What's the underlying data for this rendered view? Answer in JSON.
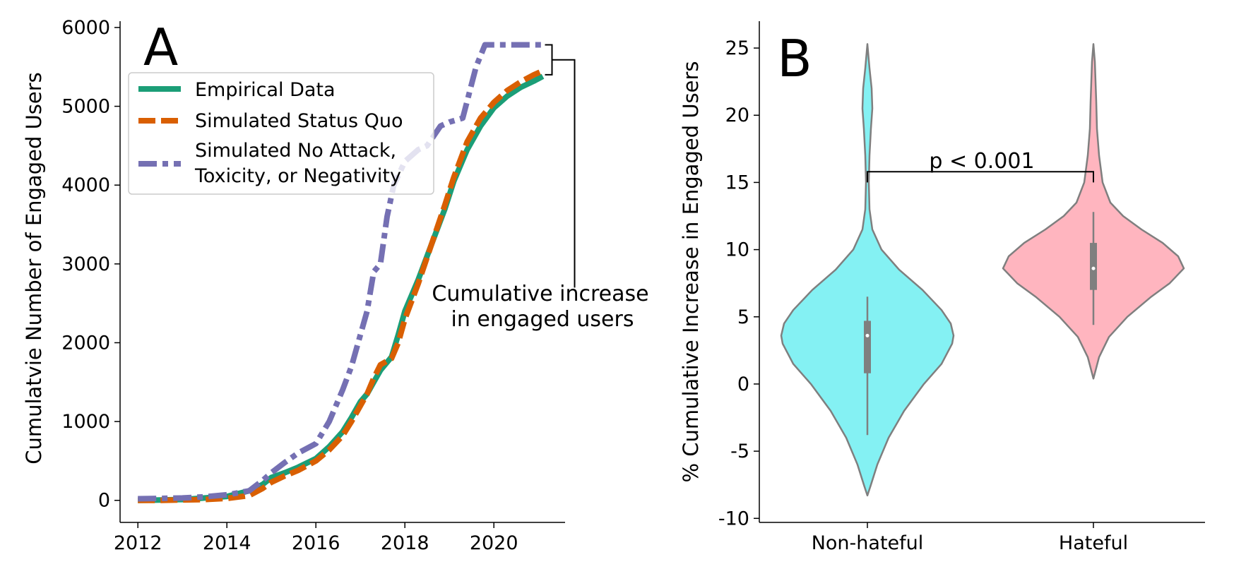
{
  "chart_data": [
    {
      "panel": "A",
      "type": "line",
      "ylabel": "Cumulatvie Number of Engaged Users",
      "xlabel": "",
      "xlim": [
        2011.6,
        2021.6
      ],
      "ylim": [
        -280,
        6080
      ],
      "x_ticks": [
        2012,
        2014,
        2016,
        2018,
        2020
      ],
      "y_ticks": [
        0,
        1000,
        2000,
        3000,
        4000,
        5000,
        6000
      ],
      "grid": false,
      "legend_position": "upper-left",
      "series": [
        {
          "name": "Empirical Data",
          "color": "#1b9e77",
          "style": "solid",
          "x": [
            2012.0,
            2012.5,
            2013.0,
            2013.5,
            2014.0,
            2014.5,
            2014.8,
            2015.0,
            2015.3,
            2015.6,
            2016.0,
            2016.3,
            2016.6,
            2016.8,
            2017.0,
            2017.15,
            2017.3,
            2017.45,
            2017.7,
            2017.85,
            2018.0,
            2018.3,
            2018.6,
            2018.9,
            2019.1,
            2019.4,
            2019.7,
            2020.0,
            2020.3,
            2020.6,
            2020.9,
            2021.1
          ],
          "y": [
            0,
            5,
            10,
            30,
            50,
            120,
            200,
            290,
            350,
            420,
            530,
            680,
            870,
            1050,
            1250,
            1350,
            1500,
            1650,
            1820,
            2100,
            2400,
            2800,
            3250,
            3700,
            4050,
            4450,
            4750,
            4980,
            5130,
            5240,
            5320,
            5380
          ]
        },
        {
          "name": "Simulated Status Quo",
          "color": "#d95f02",
          "style": "dashed",
          "x": [
            2012.0,
            2012.5,
            2013.0,
            2013.5,
            2014.0,
            2014.5,
            2014.8,
            2015.0,
            2015.3,
            2015.6,
            2016.0,
            2016.3,
            2016.6,
            2016.8,
            2017.0,
            2017.15,
            2017.3,
            2017.45,
            2017.7,
            2017.85,
            2018.0,
            2018.3,
            2018.6,
            2018.9,
            2019.1,
            2019.4,
            2019.7,
            2020.0,
            2020.3,
            2020.6,
            2020.9,
            2021.1
          ],
          "y": [
            0,
            0,
            5,
            10,
            25,
            60,
            150,
            230,
            310,
            380,
            500,
            640,
            820,
            1000,
            1200,
            1350,
            1550,
            1720,
            1800,
            2000,
            2300,
            2750,
            3250,
            3750,
            4100,
            4550,
            4850,
            5050,
            5200,
            5310,
            5400,
            5450
          ]
        },
        {
          "name": "Simulated No Attack,\nToxicity, or Negativity",
          "color": "#7570b3",
          "style": "dashdot",
          "x": [
            2012.0,
            2012.5,
            2013.0,
            2013.5,
            2014.0,
            2014.5,
            2014.8,
            2015.0,
            2015.3,
            2015.6,
            2016.0,
            2016.3,
            2016.6,
            2016.8,
            2017.0,
            2017.15,
            2017.3,
            2017.45,
            2017.6,
            2017.75,
            2018.0,
            2018.3,
            2018.5,
            2018.8,
            2019.0,
            2019.3,
            2019.6,
            2019.8,
            2020.0,
            2020.5,
            2021.1
          ],
          "y": [
            20,
            25,
            30,
            45,
            70,
            120,
            250,
            350,
            480,
            600,
            720,
            1000,
            1400,
            1700,
            2100,
            2400,
            2900,
            3000,
            3600,
            4000,
            4300,
            4450,
            4500,
            4750,
            4800,
            4850,
            5500,
            5780,
            5780,
            5780,
            5780
          ]
        }
      ],
      "annotation": {
        "text_line1": "Cumulative increase",
        "text_line2": "in engaged users",
        "y_low": 5400,
        "y_high": 5780
      }
    },
    {
      "panel": "B",
      "type": "violin",
      "ylabel": "% Cumulative Increase in Engaged Users",
      "xlabel": "",
      "categories": [
        "Non-hateful",
        "Hateful"
      ],
      "ylim": [
        -10.3,
        27
      ],
      "y_ticks": [
        25,
        20,
        15,
        10,
        5,
        0,
        -5,
        -10
      ],
      "grid": false,
      "series": [
        {
          "name": "Non-hateful",
          "color": "#84f1f3",
          "min": -8.3,
          "q1": 0.8,
          "median": 3.6,
          "q3": 4.7,
          "max": 25.3,
          "whisker_low": -3.8,
          "whisker_high": 6.5
        },
        {
          "name": "Hateful",
          "color": "#ffb5bf",
          "min": 0.4,
          "q1": 7.0,
          "median": 8.6,
          "q3": 10.5,
          "max": 25.3,
          "whisker_low": 4.4,
          "whisker_high": 12.8
        }
      ],
      "significance": {
        "text": "p < 0.001",
        "y": 15.8
      }
    }
  ]
}
